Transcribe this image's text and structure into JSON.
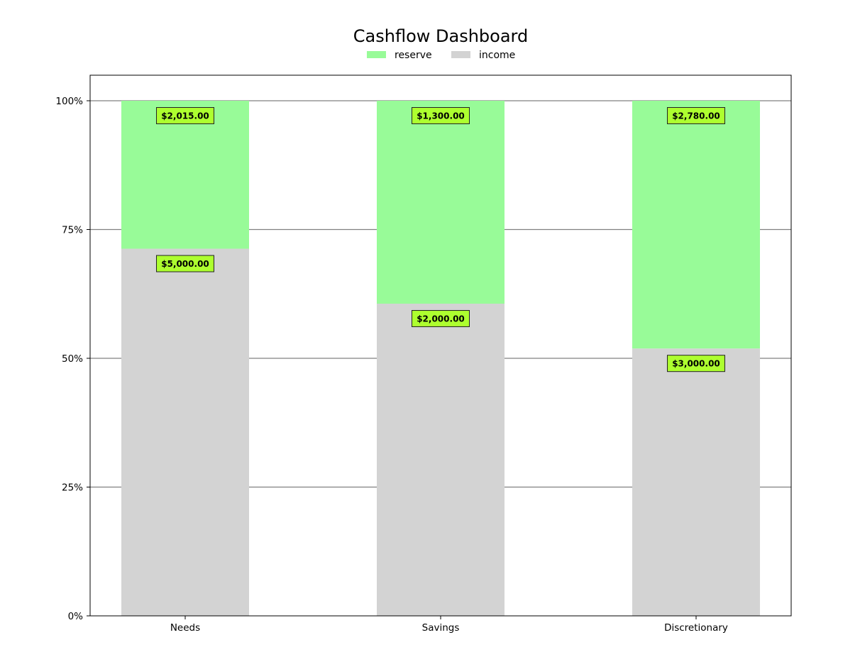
{
  "chart_data": {
    "type": "bar",
    "stacked": true,
    "normalized": true,
    "title": "Cashflow Dashboard",
    "categories": [
      "Needs",
      "Savings",
      "Discretionary"
    ],
    "series": [
      {
        "name": "income",
        "values": [
          5000,
          2000,
          3000
        ],
        "labels": [
          "$5,000.00",
          "$2,000.00",
          "$3,000.00"
        ],
        "color": "#d3d3d3"
      },
      {
        "name": "reserve",
        "values": [
          2015,
          1300,
          2780
        ],
        "labels": [
          "$2,015.00",
          "$1,300.00",
          "$2,780.00"
        ],
        "color": "#98fb98"
      }
    ],
    "legend_order": [
      "reserve",
      "income"
    ],
    "legend_position": "top-center",
    "ylim": [
      0,
      100
    ],
    "yticks": [
      0,
      25,
      50,
      75,
      100
    ],
    "ytick_labels": [
      "0%",
      "25%",
      "50%",
      "75%",
      "100%"
    ],
    "grid": "horizontal",
    "label_box_color": "#adff2f",
    "xlabel": "",
    "ylabel": ""
  }
}
